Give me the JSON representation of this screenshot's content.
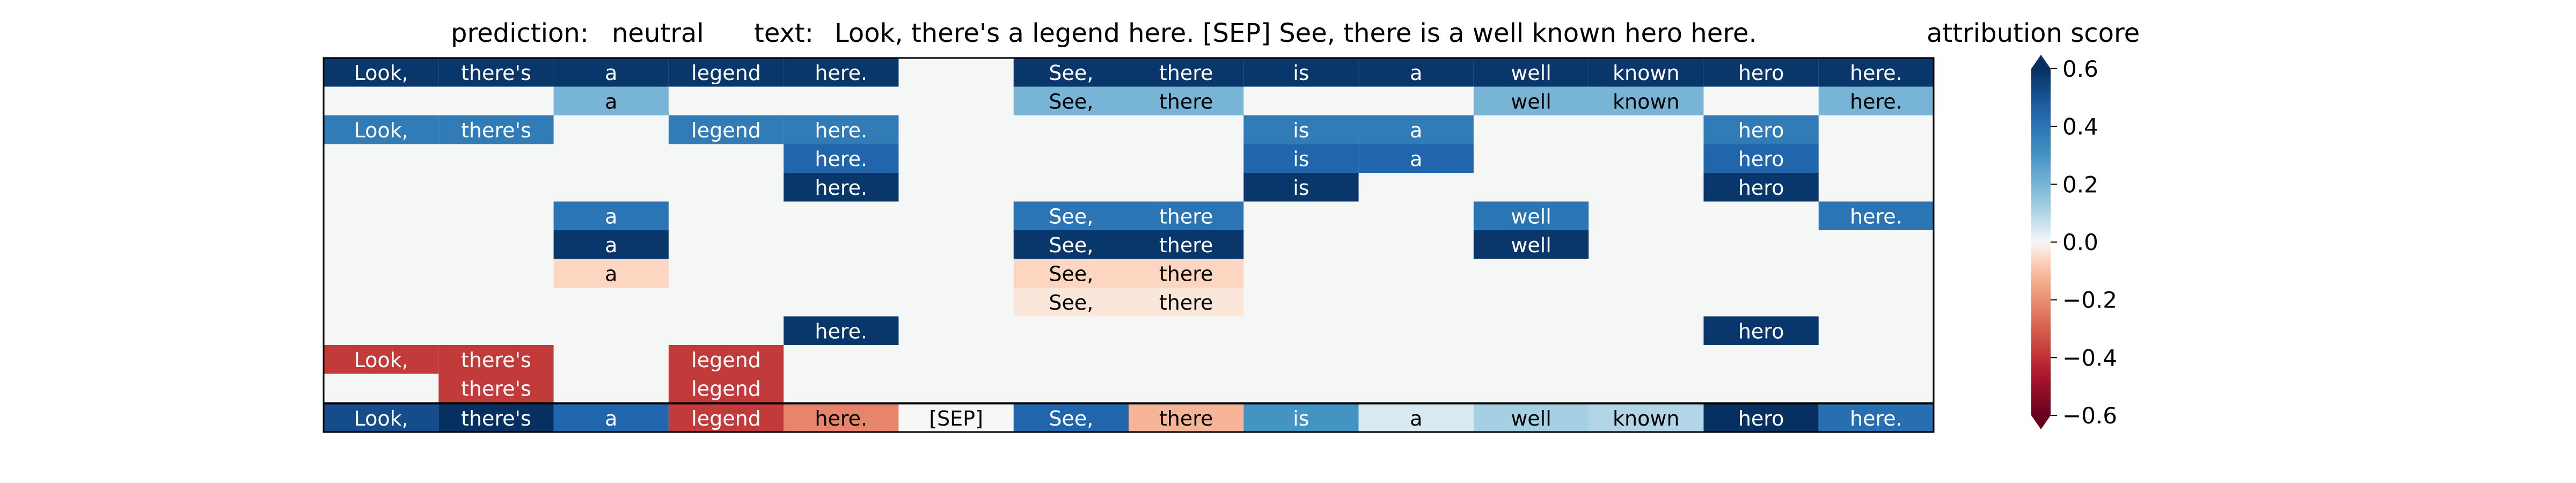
{
  "header": {
    "prediction_label": "prediction:",
    "prediction_value": "neutral",
    "text_label": "text:",
    "text_value": "Look, there's a legend here. [SEP] See, there is a well known hero here.",
    "colorbar_title": "attribution score"
  },
  "chart_data": {
    "type": "heatmap",
    "tokens": [
      "Look,",
      "there's",
      "a",
      "legend",
      "here.",
      "[SEP]",
      "See,",
      "there",
      "is",
      "a",
      "well",
      "known",
      "hero",
      "here."
    ],
    "rows": [
      [
        0.58,
        0.58,
        0.58,
        0.58,
        0.58,
        0,
        0.58,
        0.58,
        0.58,
        0.58,
        0.58,
        0.58,
        0.58,
        0.58
      ],
      [
        0,
        0,
        0.2,
        0,
        0,
        0,
        0.2,
        0.2,
        0,
        0,
        0.2,
        0.2,
        0,
        0.2
      ],
      [
        0.38,
        0.38,
        0,
        0.38,
        0.38,
        0,
        0,
        0,
        0.38,
        0.38,
        0,
        0,
        0.38,
        0
      ],
      [
        0,
        0,
        0,
        0,
        0.45,
        0,
        0,
        0,
        0.45,
        0.45,
        0,
        0,
        0.45,
        0
      ],
      [
        0,
        0,
        0,
        0,
        0.58,
        0,
        0,
        0,
        0.58,
        0,
        0,
        0,
        0.58,
        0
      ],
      [
        0,
        0,
        0.4,
        0,
        0,
        0,
        0.4,
        0.4,
        0,
        0,
        0.4,
        0,
        0,
        0.4
      ],
      [
        0,
        0,
        0.58,
        0,
        0,
        0,
        0.58,
        0.58,
        0,
        0,
        0.58,
        0,
        0,
        0
      ],
      [
        0,
        0,
        -0.06,
        0,
        0,
        0,
        -0.06,
        -0.06,
        0,
        0,
        0,
        0,
        0,
        0
      ],
      [
        0,
        0,
        0,
        0,
        0,
        0,
        -0.03,
        -0.03,
        0,
        0,
        0,
        0,
        0,
        0
      ],
      [
        0,
        0,
        0,
        0,
        0.58,
        0,
        0,
        0,
        0,
        0,
        0,
        0,
        0.58,
        0
      ],
      [
        -0.38,
        -0.38,
        0,
        -0.38,
        0,
        0,
        0,
        0,
        0,
        0,
        0,
        0,
        0,
        0
      ],
      [
        0,
        -0.38,
        0,
        -0.38,
        0,
        0,
        0,
        0,
        0,
        0,
        0,
        0,
        0,
        0
      ]
    ],
    "summary_row": [
      0.52,
      0.6,
      0.45,
      -0.38,
      -0.22,
      0.0,
      0.45,
      -0.12,
      0.3,
      0.04,
      0.12,
      0.1,
      0.65,
      0.42
    ],
    "colorbar": {
      "vmin": -0.6,
      "vmax": 0.6,
      "ticks": [
        0.6,
        0.4,
        0.2,
        0.0,
        -0.2,
        -0.4,
        -0.6
      ],
      "tick_labels": [
        "0.6",
        "0.4",
        "0.2",
        "0.0",
        "−0.2",
        "−0.4",
        "−0.6"
      ],
      "colormap": "RdBu"
    },
    "colors": {
      "empty_cell": "#f5f6f6",
      "frame": "#000000"
    }
  }
}
